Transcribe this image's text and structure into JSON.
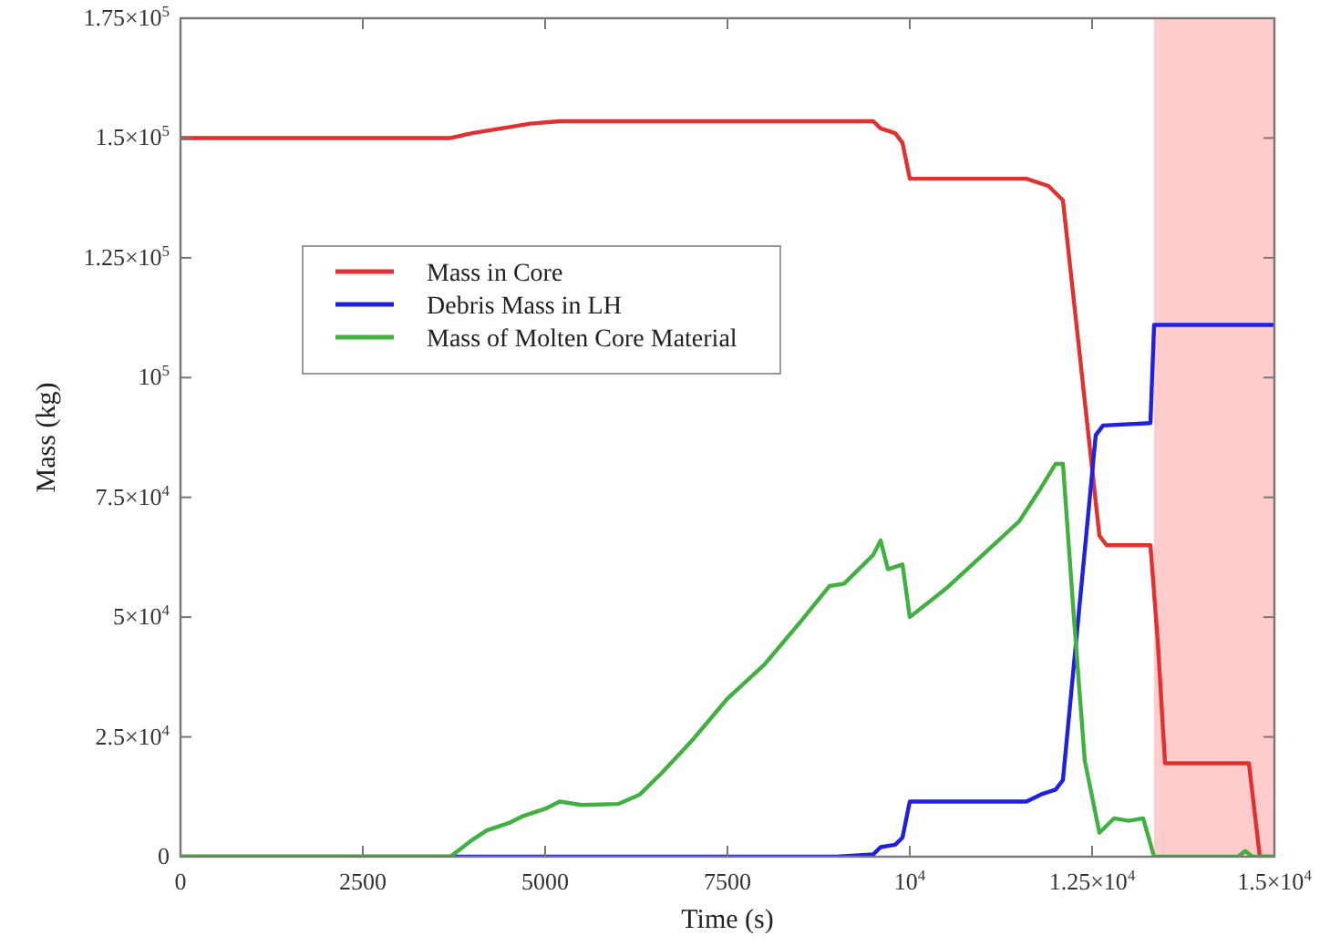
{
  "chart_data": {
    "type": "line",
    "xlabel": "Time (s)",
    "ylabel": "Mass (kg)",
    "xlim": [
      0,
      15000
    ],
    "ylim": [
      0,
      175000
    ],
    "xticks": [
      0,
      2500,
      5000,
      7500,
      {
        "value": 10000,
        "label": "10$^{4}$"
      },
      {
        "value": 12500,
        "label": "1.25×10$^{4}$"
      },
      {
        "value": 15000,
        "label": "1.5×10$^{4}$"
      }
    ],
    "yticks": [
      0,
      {
        "value": 25000,
        "label": "2.5×10$^{4}$"
      },
      {
        "value": 50000,
        "label": "5×10$^{4}$"
      },
      {
        "value": 75000,
        "label": "7.5×10$^{4}$"
      },
      {
        "value": 100000,
        "label": "10$^{5}$"
      },
      {
        "value": 125000,
        "label": "1.25×10$^{5}$"
      },
      {
        "value": 150000,
        "label": "1.5×10$^{5}$"
      },
      {
        "value": 175000,
        "label": "1.75×10$^{5}$"
      }
    ],
    "grid": false,
    "legend": "left",
    "line_style": "solid",
    "bands": [
      {
        "axis": "x",
        "from": 13350,
        "to": 15000,
        "color": "#ffcccc"
      }
    ],
    "series": [
      {
        "name": "Mass in Core",
        "color": "#e03030",
        "x": [
          0,
          3700,
          4000,
          4400,
          4800,
          5200,
          9500,
          9600,
          9800,
          9900,
          10000,
          11600,
          11900,
          12100,
          12150,
          12600,
          12700,
          13300,
          13400,
          13500,
          14650,
          14800,
          15000
        ],
        "values": [
          150000,
          150000,
          151000,
          152000,
          153000,
          153500,
          153500,
          152000,
          151000,
          149000,
          141500,
          141500,
          140000,
          137000,
          130000,
          67000,
          65000,
          65000,
          45000,
          19500,
          19500,
          0,
          0
        ]
      },
      {
        "name": "Debris Mass in LH",
        "color": "#2020e0",
        "x": [
          0,
          9000,
          9500,
          9600,
          9800,
          9900,
          10000,
          11600,
          11800,
          12000,
          12100,
          12550,
          12650,
          13300,
          13350,
          15000
        ],
        "values": [
          0,
          0,
          500,
          2000,
          2500,
          4000,
          11500,
          11500,
          13000,
          14000,
          16000,
          88000,
          90000,
          90500,
          111000,
          111000
        ]
      },
      {
        "name": "Mass of Molten Core Material",
        "color": "#40b040",
        "x": [
          0,
          3700,
          4000,
          4200,
          4500,
          4700,
          5000,
          5200,
          5500,
          6000,
          6300,
          6600,
          7000,
          7500,
          8000,
          8500,
          8900,
          9100,
          9500,
          9600,
          9700,
          9900,
          10000,
          10500,
          11000,
          11500,
          11800,
          12000,
          12100,
          12250,
          12400,
          12600,
          12800,
          13000,
          13200,
          13350,
          14500,
          14600,
          14700,
          15000
        ],
        "values": [
          0,
          0,
          3500,
          5500,
          7000,
          8500,
          10000,
          11500,
          10800,
          11000,
          13000,
          17500,
          24000,
          33000,
          40000,
          49000,
          56500,
          57000,
          63000,
          66000,
          60000,
          61000,
          50000,
          56000,
          63000,
          70000,
          77000,
          82000,
          82000,
          50000,
          20000,
          5000,
          8000,
          7500,
          8000,
          0,
          0,
          1200,
          0,
          0
        ]
      }
    ]
  }
}
